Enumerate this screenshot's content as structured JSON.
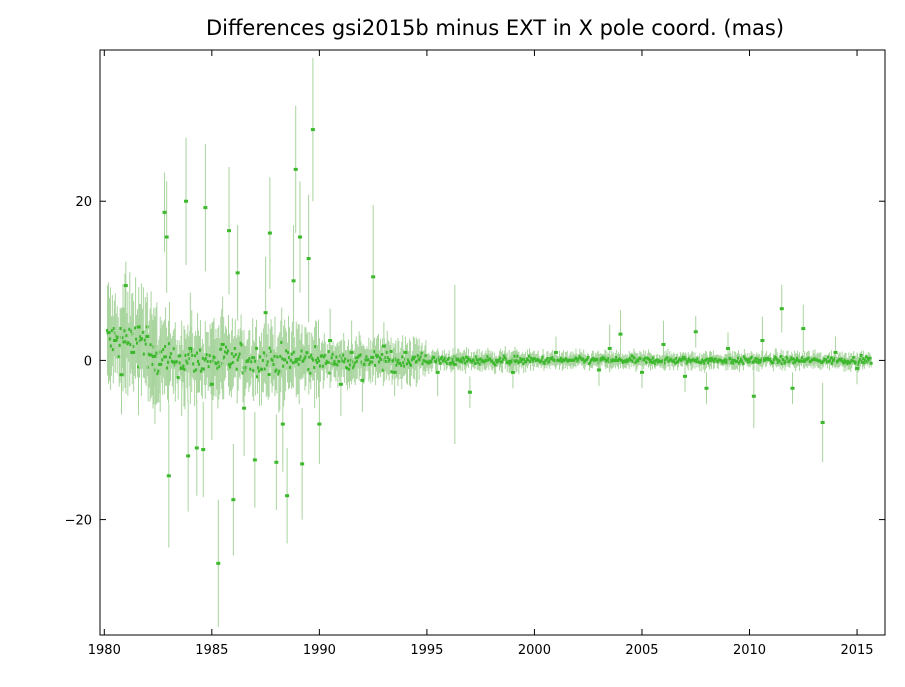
{
  "chart_data": {
    "type": "scatter",
    "title": "Differences gsi2015b minus EXT in X pole coord. (mas)",
    "xlabel": "",
    "ylabel": "",
    "xlim": [
      1979.8,
      2016.3
    ],
    "ylim": [
      -34.5,
      39.0
    ],
    "x_ticks": [
      1980,
      1985,
      1990,
      1995,
      2000,
      2005,
      2010,
      2015
    ],
    "y_ticks": [
      -20,
      0,
      20
    ],
    "y_tick_labels": [
      "−20",
      "0",
      "20"
    ],
    "grid": false,
    "legend": "none",
    "colors": {
      "points": "#3cb82c",
      "error_bars": "#a8d49e",
      "axes": "#000000"
    },
    "series": [
      {
        "points": [
          {
            "x": 1980.2,
            "y": 3.5,
            "err": 3
          },
          {
            "x": 1980.5,
            "y": 2.5,
            "err": 4
          },
          {
            "x": 1980.8,
            "y": -1.8,
            "err": 5
          },
          {
            "x": 1981.0,
            "y": 9.4,
            "err": 3
          },
          {
            "x": 1981.3,
            "y": 1.0,
            "err": 4
          },
          {
            "x": 1981.6,
            "y": 4.2,
            "err": 5
          },
          {
            "x": 1982.0,
            "y": 3.0,
            "err": 5
          },
          {
            "x": 1982.3,
            "y": 0.5,
            "err": 6
          },
          {
            "x": 1982.6,
            "y": -0.5,
            "err": 6
          },
          {
            "x": 1982.8,
            "y": 18.6,
            "err": 5
          },
          {
            "x": 1982.9,
            "y": 15.5,
            "err": 7
          },
          {
            "x": 1983.0,
            "y": -14.5,
            "err": 9
          },
          {
            "x": 1983.3,
            "y": -0.2,
            "err": 5
          },
          {
            "x": 1983.6,
            "y": -1.0,
            "err": 6
          },
          {
            "x": 1983.8,
            "y": 20.0,
            "err": 8
          },
          {
            "x": 1983.9,
            "y": -12.0,
            "err": 7
          },
          {
            "x": 1984.0,
            "y": 1.5,
            "err": 7
          },
          {
            "x": 1984.3,
            "y": -11.0,
            "err": 6
          },
          {
            "x": 1984.6,
            "y": -11.2,
            "err": 6
          },
          {
            "x": 1984.7,
            "y": 19.2,
            "err": 8
          },
          {
            "x": 1985.0,
            "y": -3.0,
            "err": 7
          },
          {
            "x": 1985.3,
            "y": -25.5,
            "err": 8
          },
          {
            "x": 1985.5,
            "y": 2.0,
            "err": 6
          },
          {
            "x": 1985.8,
            "y": 16.3,
            "err": 8
          },
          {
            "x": 1986.0,
            "y": -17.5,
            "err": 7
          },
          {
            "x": 1986.2,
            "y": 11.0,
            "err": 6
          },
          {
            "x": 1986.5,
            "y": -6.0,
            "err": 6
          },
          {
            "x": 1987.0,
            "y": -12.5,
            "err": 6
          },
          {
            "x": 1987.5,
            "y": 6.0,
            "err": 7
          },
          {
            "x": 1987.7,
            "y": 16.0,
            "err": 7
          },
          {
            "x": 1988.0,
            "y": -12.8,
            "err": 6
          },
          {
            "x": 1988.3,
            "y": -8.0,
            "err": 6
          },
          {
            "x": 1988.5,
            "y": -17.0,
            "err": 6
          },
          {
            "x": 1988.8,
            "y": 10.0,
            "err": 7
          },
          {
            "x": 1988.9,
            "y": 24.0,
            "err": 8
          },
          {
            "x": 1989.1,
            "y": 15.5,
            "err": 7
          },
          {
            "x": 1989.2,
            "y": -13.0,
            "err": 7
          },
          {
            "x": 1989.5,
            "y": 12.8,
            "err": 8
          },
          {
            "x": 1989.7,
            "y": 29.0,
            "err": 9
          },
          {
            "x": 1990.0,
            "y": -8.0,
            "err": 5
          },
          {
            "x": 1990.5,
            "y": 2.5,
            "err": 4
          },
          {
            "x": 1991.0,
            "y": -3.0,
            "err": 4
          },
          {
            "x": 1991.5,
            "y": 1.0,
            "err": 4
          },
          {
            "x": 1992.0,
            "y": -2.5,
            "err": 4
          },
          {
            "x": 1992.5,
            "y": 10.5,
            "err": 9
          },
          {
            "x": 1993.0,
            "y": 1.8,
            "err": 3
          },
          {
            "x": 1993.5,
            "y": -1.5,
            "err": 3
          },
          {
            "x": 1994.0,
            "y": 1.0,
            "err": 2
          },
          {
            "x": 1995.5,
            "y": -1.5,
            "err": 3
          },
          {
            "x": 1996.3,
            "y": -0.5,
            "err": 10
          },
          {
            "x": 1997.0,
            "y": -4.0,
            "err": 2
          },
          {
            "x": 1999.0,
            "y": -1.5,
            "err": 2
          },
          {
            "x": 2001.0,
            "y": 1.0,
            "err": 2
          },
          {
            "x": 2003.0,
            "y": -1.2,
            "err": 2
          },
          {
            "x": 2003.5,
            "y": 1.5,
            "err": 3
          },
          {
            "x": 2004.0,
            "y": 3.3,
            "err": 3
          },
          {
            "x": 2005.0,
            "y": -1.5,
            "err": 2
          },
          {
            "x": 2006.0,
            "y": 2.0,
            "err": 3
          },
          {
            "x": 2007.0,
            "y": -2.0,
            "err": 2
          },
          {
            "x": 2007.5,
            "y": 3.6,
            "err": 2
          },
          {
            "x": 2008.0,
            "y": -3.5,
            "err": 2
          },
          {
            "x": 2009.0,
            "y": 1.5,
            "err": 2
          },
          {
            "x": 2010.2,
            "y": -4.5,
            "err": 4
          },
          {
            "x": 2010.6,
            "y": 2.5,
            "err": 3
          },
          {
            "x": 2011.5,
            "y": 6.5,
            "err": 3
          },
          {
            "x": 2012.0,
            "y": -3.5,
            "err": 2
          },
          {
            "x": 2012.5,
            "y": 4.0,
            "err": 3
          },
          {
            "x": 2013.4,
            "y": -7.8,
            "err": 5
          },
          {
            "x": 2014.0,
            "y": 1.0,
            "err": 2
          },
          {
            "x": 2015.0,
            "y": -1.0,
            "err": 2
          }
        ]
      }
    ]
  }
}
